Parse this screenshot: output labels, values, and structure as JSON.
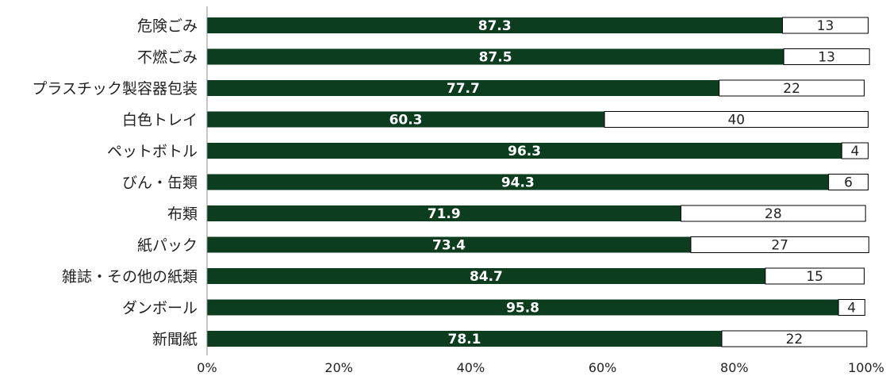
{
  "chart_data": {
    "type": "bar",
    "orientation": "horizontal",
    "stacked": true,
    "percent_stacked": true,
    "categories": [
      "危険ごみ",
      "不燃ごみ",
      "プラスチック製容器包装",
      "白色トレイ",
      "ペットボトル",
      "びん・缶類",
      "布類",
      "紙パック",
      "雑誌・その他の紙類",
      "ダンボール",
      "新聞紙"
    ],
    "series": [
      {
        "values": [
          87.3,
          87.5,
          77.7,
          60.3,
          96.3,
          94.3,
          71.9,
          73.4,
          84.7,
          95.8,
          78.1
        ],
        "labels": [
          "87.3",
          "87.5",
          "77.7",
          "60.3",
          "96.3",
          "94.3",
          "71.9",
          "73.4",
          "84.7",
          "95.8",
          "78.1"
        ],
        "color": "#0d3d1f"
      },
      {
        "values": [
          13,
          13,
          22,
          40,
          4,
          6,
          28,
          27,
          15,
          4,
          22
        ],
        "labels": [
          "13",
          "13",
          "22",
          "40",
          "4",
          "6",
          "28",
          "27",
          "15",
          "4",
          "22"
        ],
        "color": "#ffffff"
      }
    ],
    "xlim": [
      0,
      100
    ],
    "xticks": [
      "0%",
      "20%",
      "40%",
      "60%",
      "80%",
      "100%"
    ],
    "grid": false,
    "legend": "none"
  }
}
